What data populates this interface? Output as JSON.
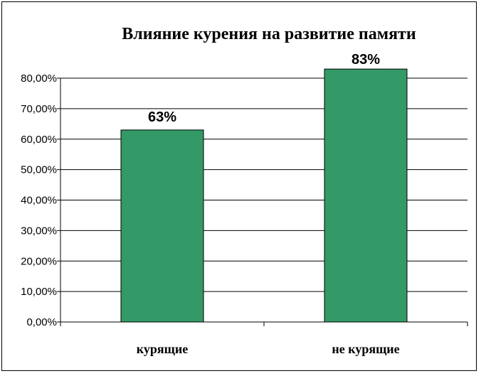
{
  "chart_data": {
    "type": "bar",
    "title": "Влияние курения на развитие памяти",
    "categories": [
      "курящие",
      "не курящие"
    ],
    "series": [
      {
        "values": [
          63,
          83
        ],
        "color": "#339966"
      }
    ],
    "data_labels": [
      "63%",
      "83%"
    ],
    "ylim": [
      0,
      80
    ],
    "yticks": [
      0,
      10,
      20,
      30,
      40,
      50,
      60,
      70,
      80
    ],
    "ytick_labels": [
      "0,00%",
      "10,00%",
      "20,00%",
      "30,00%",
      "40,00%",
      "50,00%",
      "60,00%",
      "70,00%",
      "80,00%"
    ],
    "xlabel": "",
    "ylabel": "",
    "grid": true,
    "legend": "none"
  }
}
